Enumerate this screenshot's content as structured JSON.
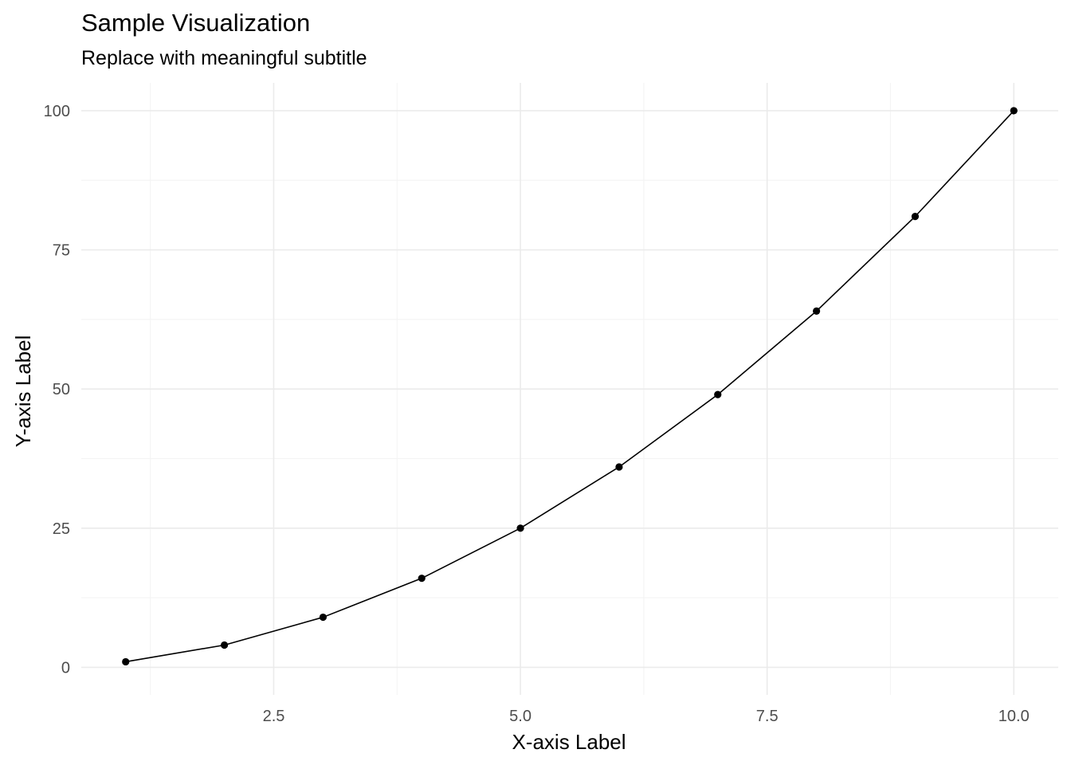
{
  "chart_data": {
    "type": "line",
    "title": "Sample Visualization",
    "subtitle": "Replace with meaningful subtitle",
    "xlabel": "X-axis Label",
    "ylabel": "Y-axis Label",
    "x": [
      1,
      2,
      3,
      4,
      5,
      6,
      7,
      8,
      9,
      10
    ],
    "series": [
      {
        "values": [
          1,
          4,
          9,
          16,
          25,
          36,
          49,
          64,
          81,
          100
        ]
      }
    ],
    "xlim": [
      0.55,
      10.45
    ],
    "ylim": [
      -4.95,
      105
    ],
    "x_ticks": [
      2.5,
      5.0,
      7.5,
      10.0
    ],
    "x_tick_labels": [
      "2.5",
      "5.0",
      "7.5",
      "10.0"
    ],
    "y_ticks": [
      0,
      25,
      50,
      75,
      100
    ],
    "y_tick_labels": [
      "0",
      "25",
      "50",
      "75",
      "100"
    ],
    "grid": true,
    "legend": "none",
    "colors": {
      "line": "#000000",
      "points": "#000000",
      "grid_major": "#ebebeb",
      "grid_minor": "#f4f4f4",
      "tick_text": "#4d4d4d"
    }
  }
}
